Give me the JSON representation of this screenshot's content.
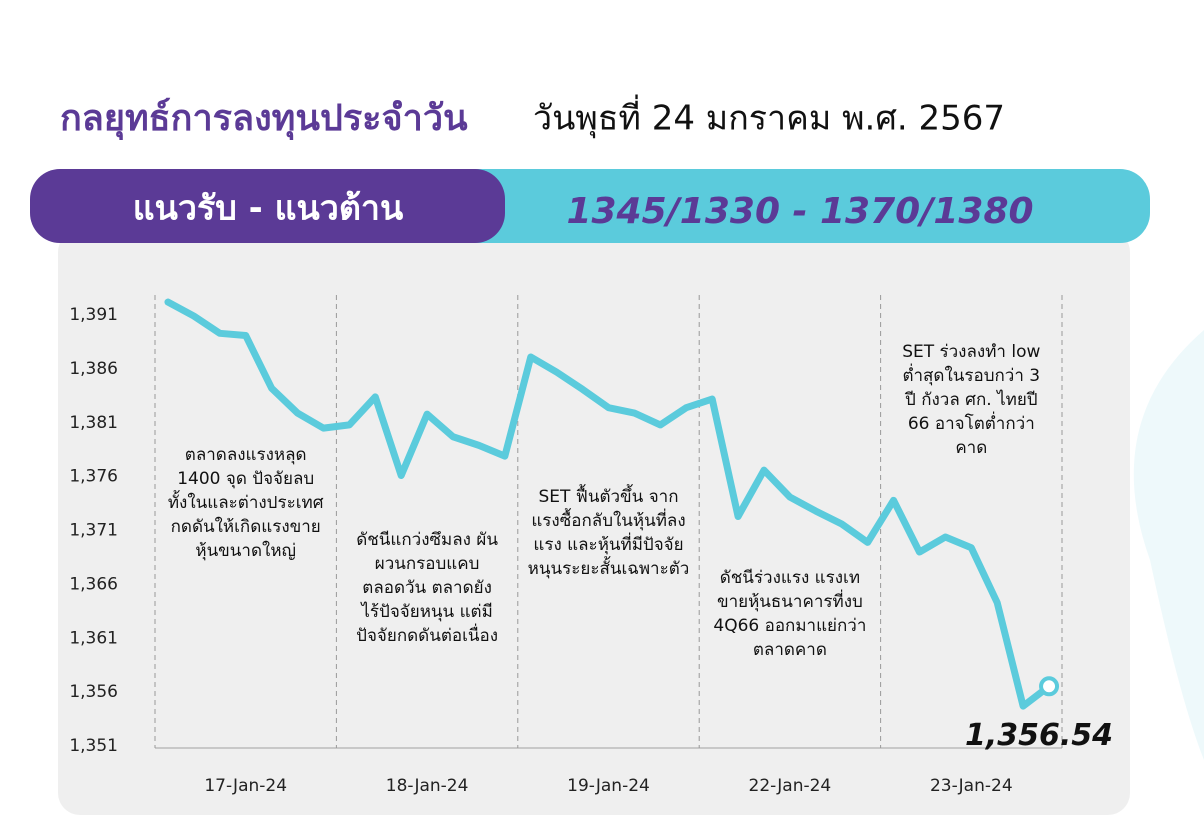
{
  "chart_data": {
    "type": "line",
    "title": "กลยุทธ์การลงทุนประจำวัน",
    "subtitle": "วันพุธที่ 24 มกราคม พ.ศ. 2567",
    "banner_label": "แนวรับ - แนวต้าน",
    "banner_value": "1345/1330 - 1370/1380",
    "categories": [
      null,
      null,
      null,
      "17-Jan-24",
      null,
      null,
      null,
      null,
      null,
      null,
      "18-Jan-24",
      null,
      null,
      null,
      null,
      null,
      null,
      "19-Jan-24",
      null,
      null,
      null,
      null,
      null,
      null,
      "22-Jan-24",
      null,
      null,
      null,
      null,
      null,
      null,
      "23-Jan-24",
      null,
      null,
      null
    ],
    "values": [
      1392.2,
      1390.9,
      1389.3,
      1389.1,
      1384.2,
      1381.9,
      1380.5,
      1380.8,
      1383.4,
      1376.1,
      1381.8,
      1379.7,
      1378.9,
      1377.9,
      1387.1,
      1385.7,
      1384.1,
      1382.4,
      1381.9,
      1380.8,
      1382.4,
      1383.2,
      1372.3,
      1376.6,
      1374.1,
      1372.8,
      1371.6,
      1369.9,
      1373.8,
      1369.0,
      1370.4,
      1369.4,
      1364.3,
      1354.7,
      1356.54
    ],
    "value_labels": [
      null,
      null,
      null,
      null,
      null,
      null,
      null,
      null,
      null,
      null,
      null,
      null,
      null,
      null,
      null,
      null,
      null,
      null,
      null,
      null,
      null,
      null,
      null,
      null,
      null,
      null,
      null,
      null,
      null,
      null,
      null,
      null,
      null,
      null,
      "1,356.54"
    ],
    "color": "#5bcbdc",
    "ylim": [
      1351,
      1391
    ],
    "yticks": [
      {
        "value": 1351,
        "label": "1,351"
      },
      {
        "value": 1356,
        "label": "1,356"
      },
      {
        "value": 1361,
        "label": "1,361"
      },
      {
        "value": 1366,
        "label": "1,366"
      },
      {
        "value": 1371,
        "label": "1,371"
      },
      {
        "value": 1376,
        "label": "1,376"
      },
      {
        "value": 1381,
        "label": "1,381"
      },
      {
        "value": 1386,
        "label": "1,386"
      },
      {
        "value": 1391,
        "label": "1,391"
      }
    ],
    "annotations": [
      [
        "ตลาดลงแรงหลุด",
        "1400 จุด ปัจจัยลบ",
        "ทั้งในและต่างประเทศ",
        "กดดันให้เกิดแรงขาย",
        "หุ้นขนาดใหญ่"
      ],
      [
        "ดัชนีแกว่งซึมลง ผัน",
        "ผวนกรอบแคบ",
        "ตลอดวัน ตลาดยัง",
        "ไร้ปัจจัยหนุน แต่มี",
        "ปัจจัยกดดันต่อเนื่อง"
      ],
      [
        "SET ฟื้นตัวขึ้น จาก",
        "แรงซื้อกลับในหุ้นที่ลง",
        "แรง และหุ้นที่มีปัจจัย",
        "หนุนระยะสั้นเฉพาะตัว"
      ],
      [
        "ดัชนีร่วงแรง แรงเท",
        "ขายหุ้นธนาคารที่งบ",
        "4Q66 ออกมาแย่กว่า",
        "ตลาดคาด"
      ],
      [
        "SET ร่วงลงทำ low",
        "ต่ำสุดในรอบกว่า 3",
        "ปี กังวล ศก. ไทยปี",
        "66 อาจโตต่ำกว่า",
        "คาด"
      ]
    ]
  }
}
